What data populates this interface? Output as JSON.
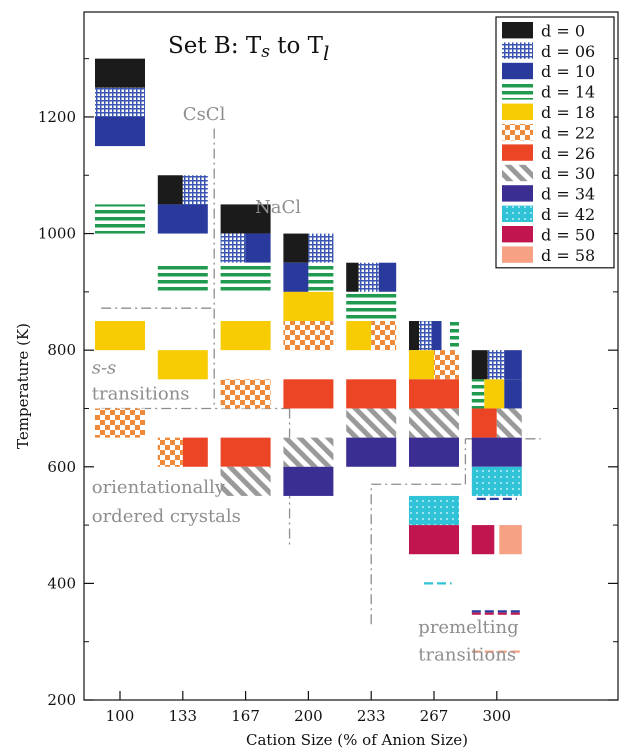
{
  "chart_data": {
    "type": "bar",
    "title_main": "Set B:  T",
    "title_sub1": "s",
    "title_mid": " to T",
    "title_sub2": "l",
    "xlabel": "Cation Size (% of Anion Size)",
    "ylabel": "Temperature (K)",
    "ylim": [
      200,
      1380
    ],
    "yticks": [
      200,
      400,
      600,
      800,
      1000,
      1200
    ],
    "categories": [
      "100",
      "133",
      "167",
      "200",
      "233",
      "267",
      "300"
    ],
    "legend": [
      {
        "label": "d = 0",
        "color": "#1b1b1b",
        "pattern": "solid"
      },
      {
        "label": "d = 06",
        "color": "#3a56b0",
        "pattern": "grid"
      },
      {
        "label": "d = 10",
        "color": "#2a3a9c",
        "pattern": "solid"
      },
      {
        "label": "d = 14",
        "color": "#1f9a4f",
        "pattern": "hstripe"
      },
      {
        "label": "d = 18",
        "color": "#f7cc05",
        "pattern": "solid"
      },
      {
        "label": "d = 22",
        "color": "#ee8a3a",
        "pattern": "checker"
      },
      {
        "label": "d = 26",
        "color": "#ec4526",
        "pattern": "solid"
      },
      {
        "label": "d = 30",
        "color": "#9a9a9a",
        "pattern": "diag"
      },
      {
        "label": "d = 34",
        "color": "#3b2e93",
        "pattern": "solid"
      },
      {
        "label": "d = 42",
        "color": "#30c2d6",
        "pattern": "dots"
      },
      {
        "label": "d = 50",
        "color": "#c0154f",
        "pattern": "solid"
      },
      {
        "label": "d = 58",
        "color": "#f6a084",
        "pattern": "solid"
      }
    ],
    "blocks": [
      {
        "cat": 0,
        "d": "d = 0",
        "tmin": 1250,
        "tmax": 1300,
        "frac": [
          0,
          1
        ]
      },
      {
        "cat": 0,
        "d": "d = 06",
        "tmin": 1200,
        "tmax": 1250,
        "frac": [
          0,
          1
        ]
      },
      {
        "cat": 0,
        "d": "d = 10",
        "tmin": 1150,
        "tmax": 1200,
        "frac": [
          0,
          1
        ]
      },
      {
        "cat": 0,
        "d": "d = 14",
        "tmin": 1000,
        "tmax": 1050,
        "frac": [
          0,
          1
        ]
      },
      {
        "cat": 0,
        "d": "d = 18",
        "tmin": 800,
        "tmax": 850,
        "frac": [
          0,
          1
        ]
      },
      {
        "cat": 0,
        "d": "d = 22",
        "tmin": 650,
        "tmax": 700,
        "frac": [
          0,
          1
        ]
      },
      {
        "cat": 1,
        "d": "d = 0",
        "tmin": 1050,
        "tmax": 1100,
        "frac": [
          0,
          0.5
        ]
      },
      {
        "cat": 1,
        "d": "d = 06",
        "tmin": 1050,
        "tmax": 1100,
        "frac": [
          0.5,
          1
        ]
      },
      {
        "cat": 1,
        "d": "d = 10",
        "tmin": 1000,
        "tmax": 1050,
        "frac": [
          0,
          1
        ]
      },
      {
        "cat": 1,
        "d": "d = 14",
        "tmin": 900,
        "tmax": 950,
        "frac": [
          0,
          1
        ]
      },
      {
        "cat": 1,
        "d": "d = 18",
        "tmin": 750,
        "tmax": 800,
        "frac": [
          0,
          1
        ]
      },
      {
        "cat": 1,
        "d": "d = 22",
        "tmin": 600,
        "tmax": 650,
        "frac": [
          0,
          0.5
        ]
      },
      {
        "cat": 1,
        "d": "d = 26",
        "tmin": 600,
        "tmax": 650,
        "frac": [
          0.5,
          1
        ]
      },
      {
        "cat": 2,
        "d": "d = 0",
        "tmin": 1000,
        "tmax": 1050,
        "frac": [
          0,
          1
        ]
      },
      {
        "cat": 2,
        "d": "d = 06",
        "tmin": 950,
        "tmax": 1000,
        "frac": [
          0,
          0.5
        ]
      },
      {
        "cat": 2,
        "d": "d = 10",
        "tmin": 950,
        "tmax": 1000,
        "frac": [
          0.5,
          1
        ]
      },
      {
        "cat": 2,
        "d": "d = 14",
        "tmin": 900,
        "tmax": 950,
        "frac": [
          0,
          1
        ]
      },
      {
        "cat": 2,
        "d": "d = 18",
        "tmin": 800,
        "tmax": 850,
        "frac": [
          0,
          1
        ]
      },
      {
        "cat": 2,
        "d": "d = 22",
        "tmin": 700,
        "tmax": 750,
        "frac": [
          0,
          1
        ]
      },
      {
        "cat": 2,
        "d": "d = 26",
        "tmin": 600,
        "tmax": 650,
        "frac": [
          0,
          1
        ]
      },
      {
        "cat": 2,
        "d": "d = 30",
        "tmin": 550,
        "tmax": 600,
        "frac": [
          0,
          1
        ]
      },
      {
        "cat": 3,
        "d": "d = 0",
        "tmin": 950,
        "tmax": 1000,
        "frac": [
          0,
          0.5
        ]
      },
      {
        "cat": 3,
        "d": "d = 06",
        "tmin": 950,
        "tmax": 1000,
        "frac": [
          0.5,
          1
        ]
      },
      {
        "cat": 3,
        "d": "d = 10",
        "tmin": 900,
        "tmax": 950,
        "frac": [
          0,
          0.5
        ]
      },
      {
        "cat": 3,
        "d": "d = 14",
        "tmin": 900,
        "tmax": 950,
        "frac": [
          0.5,
          1
        ]
      },
      {
        "cat": 3,
        "d": "d = 18",
        "tmin": 850,
        "tmax": 900,
        "frac": [
          0,
          1
        ]
      },
      {
        "cat": 3,
        "d": "d = 22",
        "tmin": 800,
        "tmax": 850,
        "frac": [
          0,
          1
        ]
      },
      {
        "cat": 3,
        "d": "d = 26",
        "tmin": 700,
        "tmax": 750,
        "frac": [
          0,
          1
        ]
      },
      {
        "cat": 3,
        "d": "d = 30",
        "tmin": 600,
        "tmax": 650,
        "frac": [
          0,
          1
        ]
      },
      {
        "cat": 3,
        "d": "d = 34",
        "tmin": 550,
        "tmax": 600,
        "frac": [
          0,
          1
        ]
      },
      {
        "cat": 4,
        "d": "d = 0",
        "tmin": 900,
        "tmax": 950,
        "frac": [
          0,
          0.25
        ]
      },
      {
        "cat": 4,
        "d": "d = 06",
        "tmin": 900,
        "tmax": 950,
        "frac": [
          0.25,
          0.65
        ]
      },
      {
        "cat": 4,
        "d": "d = 10",
        "tmin": 900,
        "tmax": 950,
        "frac": [
          0.65,
          1
        ]
      },
      {
        "cat": 4,
        "d": "d = 14",
        "tmin": 850,
        "tmax": 900,
        "frac": [
          0,
          1
        ]
      },
      {
        "cat": 4,
        "d": "d = 18",
        "tmin": 800,
        "tmax": 850,
        "frac": [
          0,
          0.5
        ]
      },
      {
        "cat": 4,
        "d": "d = 22",
        "tmin": 800,
        "tmax": 850,
        "frac": [
          0.5,
          1
        ]
      },
      {
        "cat": 4,
        "d": "d = 26",
        "tmin": 700,
        "tmax": 750,
        "frac": [
          0,
          1
        ]
      },
      {
        "cat": 4,
        "d": "d = 30",
        "tmin": 650,
        "tmax": 700,
        "frac": [
          0,
          1
        ]
      },
      {
        "cat": 4,
        "d": "d = 34",
        "tmin": 600,
        "tmax": 650,
        "frac": [
          0,
          1
        ]
      },
      {
        "cat": 5,
        "d": "d = 0",
        "tmin": 800,
        "tmax": 850,
        "frac": [
          0,
          0.2
        ]
      },
      {
        "cat": 5,
        "d": "d = 06",
        "tmin": 800,
        "tmax": 850,
        "frac": [
          0.2,
          0.45
        ]
      },
      {
        "cat": 5,
        "d": "d = 10",
        "tmin": 800,
        "tmax": 850,
        "frac": [
          0.45,
          0.65
        ]
      },
      {
        "cat": 5,
        "d": "d = 14",
        "tmin": 800,
        "tmax": 850,
        "frac": [
          0.82,
          1
        ]
      },
      {
        "cat": 5,
        "d": "d = 18",
        "tmin": 750,
        "tmax": 800,
        "frac": [
          0,
          0.5
        ]
      },
      {
        "cat": 5,
        "d": "d = 22",
        "tmin": 750,
        "tmax": 800,
        "frac": [
          0.5,
          1
        ]
      },
      {
        "cat": 5,
        "d": "d = 26",
        "tmin": 700,
        "tmax": 750,
        "frac": [
          0,
          1
        ]
      },
      {
        "cat": 5,
        "d": "d = 30",
        "tmin": 650,
        "tmax": 700,
        "frac": [
          0,
          1
        ]
      },
      {
        "cat": 5,
        "d": "d = 34",
        "tmin": 600,
        "tmax": 650,
        "frac": [
          0,
          1
        ]
      },
      {
        "cat": 5,
        "d": "d = 42",
        "tmin": 500,
        "tmax": 550,
        "frac": [
          0,
          1
        ]
      },
      {
        "cat": 5,
        "d": "d = 50",
        "tmin": 450,
        "tmax": 500,
        "frac": [
          0,
          1
        ]
      },
      {
        "cat": 6,
        "d": "d = 0",
        "tmin": 750,
        "tmax": 800,
        "frac": [
          0,
          0.32
        ]
      },
      {
        "cat": 6,
        "d": "d = 06",
        "tmin": 750,
        "tmax": 800,
        "frac": [
          0.32,
          0.65
        ]
      },
      {
        "cat": 6,
        "d": "d = 10",
        "tmin": 750,
        "tmax": 800,
        "frac": [
          0.65,
          1
        ]
      },
      {
        "cat": 6,
        "d": "d = 14",
        "tmin": 700,
        "tmax": 750,
        "frac": [
          0,
          0.25
        ]
      },
      {
        "cat": 6,
        "d": "d = 18",
        "tmin": 700,
        "tmax": 750,
        "frac": [
          0.25,
          0.65
        ]
      },
      {
        "cat": 6,
        "d": "d = 10",
        "tmin": 700,
        "tmax": 750,
        "frac": [
          0.65,
          1
        ]
      },
      {
        "cat": 6,
        "d": "d = 26",
        "tmin": 650,
        "tmax": 700,
        "frac": [
          0,
          0.5
        ]
      },
      {
        "cat": 6,
        "d": "d = 30",
        "tmin": 650,
        "tmax": 700,
        "frac": [
          0.5,
          1
        ]
      },
      {
        "cat": 6,
        "d": "d = 34",
        "tmin": 600,
        "tmax": 650,
        "frac": [
          0,
          1
        ]
      },
      {
        "cat": 6,
        "d": "d = 42",
        "tmin": 550,
        "tmax": 600,
        "frac": [
          0,
          1
        ]
      },
      {
        "cat": 6,
        "d": "d = 50",
        "tmin": 450,
        "tmax": 500,
        "frac": [
          0,
          0.45
        ]
      },
      {
        "cat": 6,
        "d": "d = 58",
        "tmin": 450,
        "tmax": 500,
        "frac": [
          0.55,
          1
        ]
      }
    ],
    "dashes": [
      {
        "cat": 5,
        "t": 400,
        "color": "#30c2d6",
        "frac": [
          0.3,
          0.85
        ]
      },
      {
        "cat": 6,
        "t": 545,
        "color": "#2a3a9c",
        "frac": [
          0.1,
          0.9
        ]
      },
      {
        "cat": 6,
        "t": 352,
        "color": "#2a3a9c",
        "frac": [
          0,
          1
        ]
      },
      {
        "cat": 6,
        "t": 348,
        "color": "#c0154f",
        "frac": [
          0,
          1
        ]
      },
      {
        "cat": 6,
        "t": 283,
        "color": "#f6a084",
        "frac": [
          0,
          1
        ]
      }
    ],
    "annotations": [
      {
        "text": "CsCl",
        "x": 1.0,
        "t": 1195
      },
      {
        "text": "NaCl",
        "x": 2.15,
        "t": 1035
      },
      {
        "text": "s-s",
        "x": -0.45,
        "t": 760,
        "italic": true
      },
      {
        "text": "transitions",
        "x": -0.45,
        "t": 715
      },
      {
        "text": "orientationally",
        "x": -0.45,
        "t": 555
      },
      {
        "text": "ordered crystals",
        "x": -0.45,
        "t": 505
      },
      {
        "text": "premelting",
        "x": 4.75,
        "t": 315
      },
      {
        "text": "transitions",
        "x": 4.75,
        "t": 268
      }
    ],
    "boundaries": [
      [
        [
          -0.3,
          872
        ],
        [
          1.5,
          872
        ]
      ],
      [
        [
          1.5,
          1180
        ],
        [
          1.5,
          700
        ]
      ],
      [
        [
          -0.3,
          700
        ],
        [
          2.7,
          700
        ]
      ],
      [
        [
          2.7,
          700
        ],
        [
          2.7,
          460
        ]
      ],
      [
        [
          4.0,
          330
        ],
        [
          4.0,
          570
        ]
      ],
      [
        [
          4.0,
          570
        ],
        [
          5.5,
          570
        ]
      ],
      [
        [
          5.5,
          570
        ],
        [
          5.5,
          648
        ]
      ],
      [
        [
          5.5,
          648
        ],
        [
          6.7,
          648
        ]
      ]
    ]
  }
}
